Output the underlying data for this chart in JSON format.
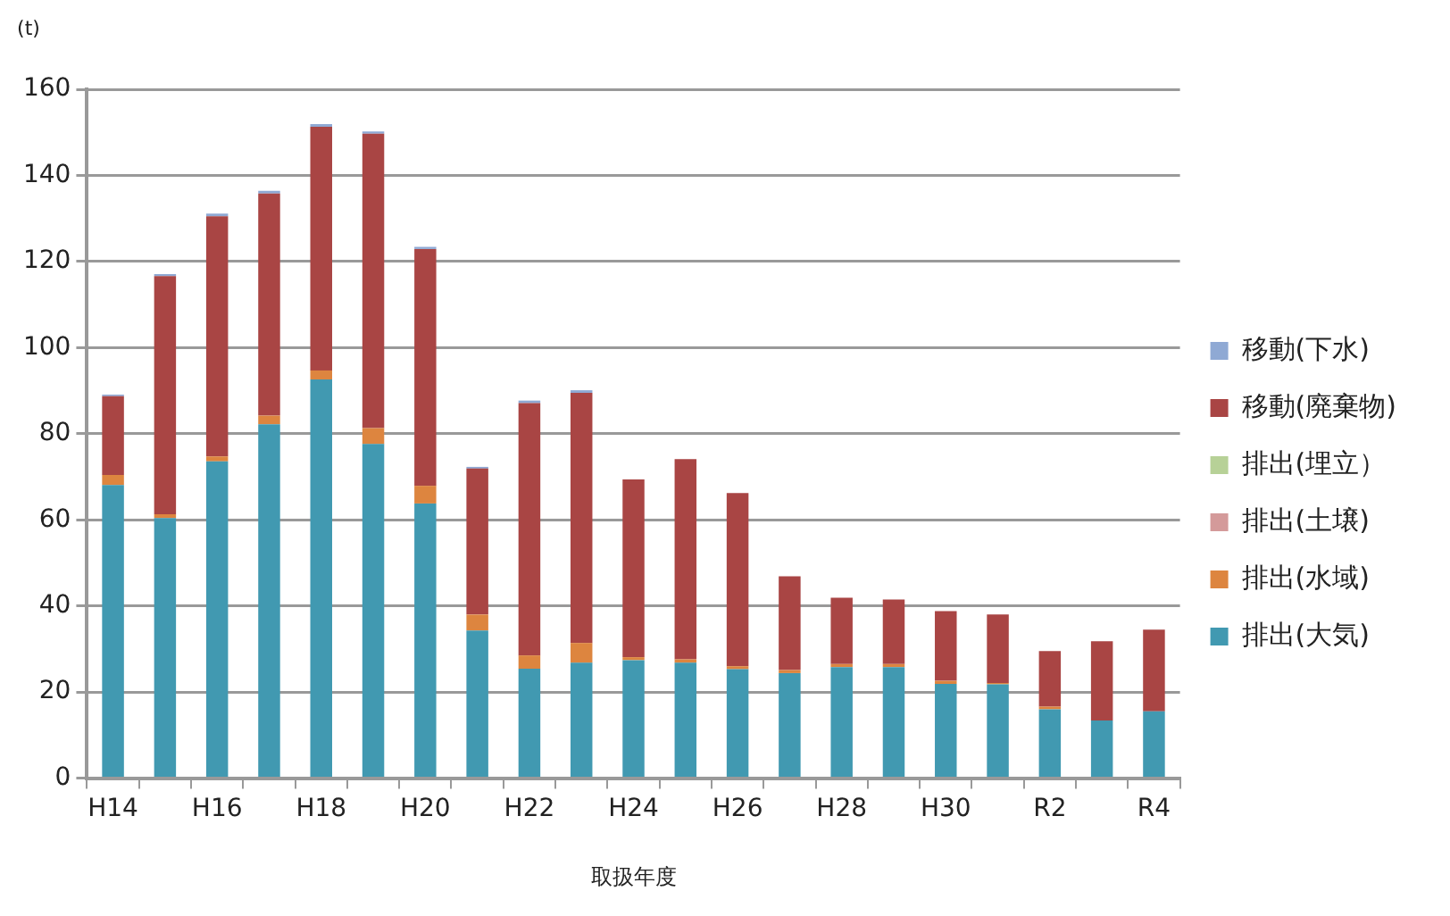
{
  "chart_data": {
    "type": "bar",
    "stacked": true,
    "xlabel": "取扱年度",
    "ylabel": "(t)",
    "categories": [
      "H14",
      null,
      "H16",
      null,
      "H18",
      null,
      "H20",
      null,
      "H22",
      null,
      "H24",
      null,
      "H26",
      null,
      "H28",
      null,
      "H30",
      null,
      "R2",
      null,
      "R4"
    ],
    "series": [
      {
        "name": "排出(大気)",
        "color": "#4199b1",
        "values": [
          68.1,
          60.4,
          73.6,
          82.2,
          92.6,
          77.6,
          63.8,
          34.3,
          25.4,
          26.8,
          27.4,
          26.8,
          25.3,
          24.4,
          25.8,
          25.8,
          21.9,
          21.8,
          16.0,
          13.4,
          15.5
        ]
      },
      {
        "name": "排出(水域)",
        "color": "#dd853f",
        "values": [
          2.3,
          0.9,
          1.1,
          2.0,
          2.1,
          3.7,
          4.1,
          3.7,
          3.1,
          4.6,
          0.7,
          0.8,
          0.7,
          0.7,
          0.7,
          0.7,
          0.7,
          0.3,
          0.6,
          0,
          0
        ]
      },
      {
        "name": "排出(土壌)",
        "color": "#d49a9a",
        "values": [
          0,
          0,
          0,
          0,
          0,
          0,
          0,
          0,
          0,
          0,
          0,
          0,
          0,
          0,
          0,
          0,
          0,
          0,
          0,
          0,
          0
        ]
      },
      {
        "name": "排出(埋立）",
        "color": "#b7d197",
        "values": [
          0,
          0,
          0,
          0,
          0,
          0,
          0,
          0,
          0,
          0,
          0,
          0,
          0,
          0,
          0,
          0,
          0,
          0,
          0,
          0,
          0
        ]
      },
      {
        "name": "移動(廃棄物)",
        "color": "#a94544",
        "values": [
          18.3,
          55.3,
          55.8,
          51.6,
          56.6,
          68.4,
          55.0,
          33.9,
          58.6,
          58.1,
          41.3,
          46.5,
          40.2,
          21.8,
          15.4,
          15.0,
          16.2,
          15.9,
          12.9,
          18.4,
          19.0
        ]
      },
      {
        "name": "移動(下水)",
        "color": "#8fa9d4",
        "values": [
          0.4,
          0.5,
          0.6,
          0.6,
          0.6,
          0.5,
          0.5,
          0.4,
          0.6,
          0.6,
          0,
          0,
          0,
          0,
          0,
          0,
          0,
          0,
          0,
          0,
          0
        ]
      }
    ],
    "ylim": [
      0,
      160
    ],
    "yticks": [
      0,
      20,
      40,
      60,
      80,
      100,
      120,
      140,
      160
    ],
    "grid": "y",
    "legend": "right"
  }
}
